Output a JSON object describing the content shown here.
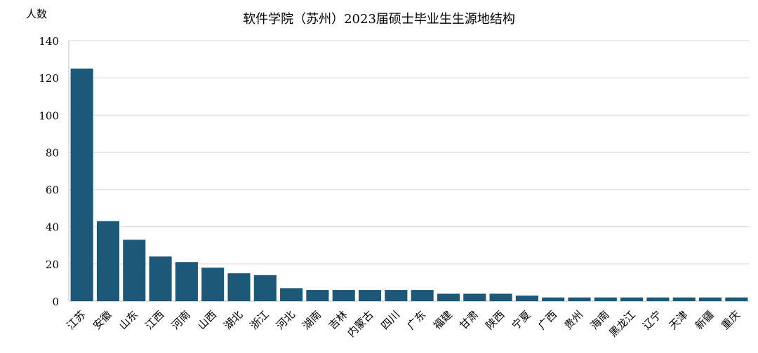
{
  "chart_data": {
    "type": "bar",
    "title": "软件学院（苏州）2023届硕士毕业生生源地结构",
    "ylabel": "人数",
    "xlabel": "",
    "ylim": [
      0,
      140
    ],
    "y_ticks": [
      0,
      20,
      40,
      60,
      80,
      100,
      120,
      140
    ],
    "grid": true,
    "legend": "none",
    "bar_color": "#1c5878",
    "categories": [
      "江苏",
      "安徽",
      "山东",
      "江西",
      "河南",
      "山西",
      "湖北",
      "浙江",
      "河北",
      "湖南",
      "吉林",
      "内蒙古",
      "四川",
      "广东",
      "福建",
      "甘肃",
      "陕西",
      "宁夏",
      "广西",
      "贵州",
      "海南",
      "黑龙江",
      "辽宁",
      "天津",
      "新疆",
      "重庆"
    ],
    "values": [
      125,
      43,
      33,
      24,
      21,
      18,
      15,
      14,
      7,
      6,
      6,
      6,
      6,
      6,
      4,
      4,
      4,
      3,
      2,
      2,
      2,
      2,
      2,
      2,
      2,
      2
    ]
  }
}
